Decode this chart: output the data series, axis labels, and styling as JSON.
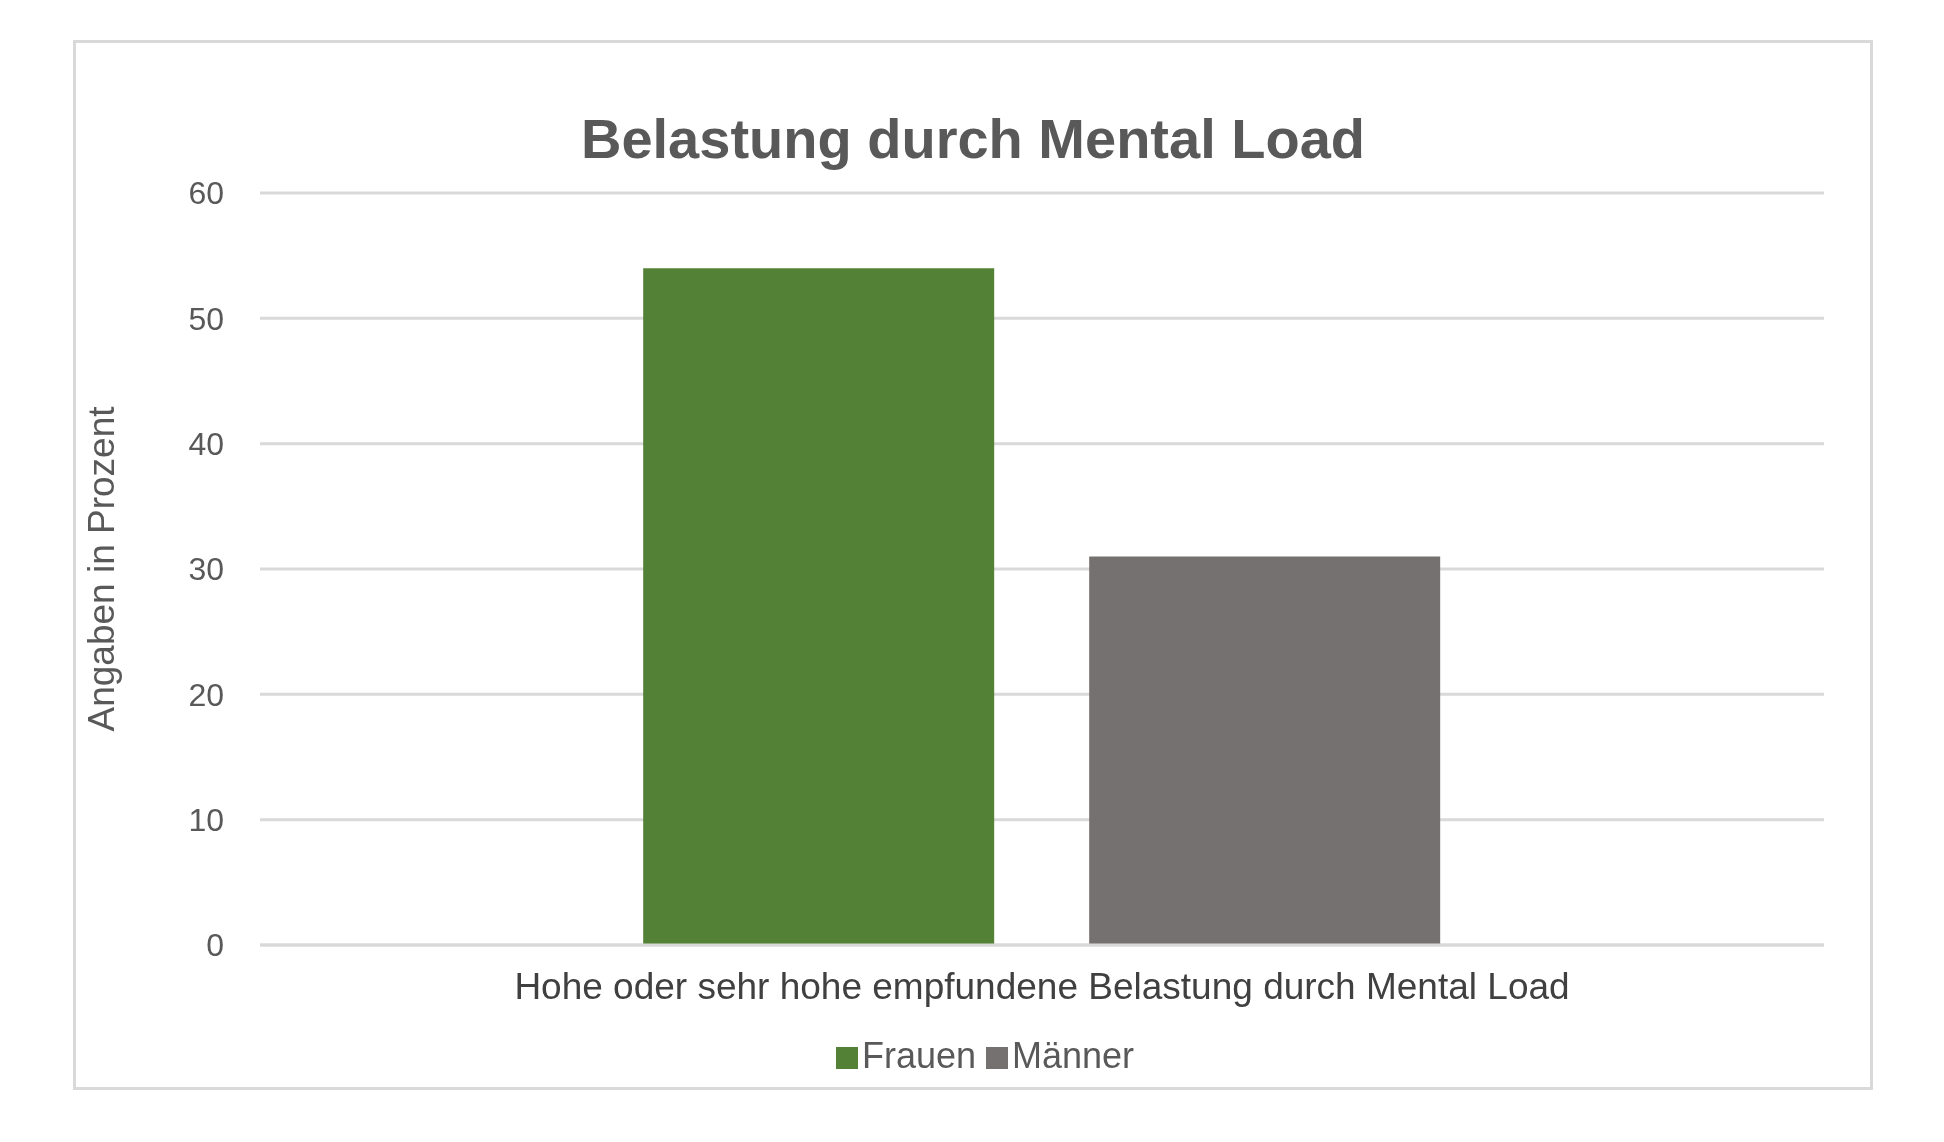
{
  "chart_data": {
    "type": "bar",
    "title": "Belastung durch Mental Load",
    "ylabel": "Angaben in Prozent",
    "categories": [
      "Hohe oder sehr hohe empfundene Belastung durch Mental Load"
    ],
    "series": [
      {
        "name": "Frauen",
        "color": "#538135",
        "values": [
          54
        ]
      },
      {
        "name": "Männer",
        "color": "#767171",
        "values": [
          31
        ]
      }
    ],
    "ylim": [
      0,
      60
    ],
    "yticks": [
      0,
      10,
      20,
      30,
      40,
      50,
      60
    ],
    "grid": "y",
    "legend": "bottom"
  }
}
